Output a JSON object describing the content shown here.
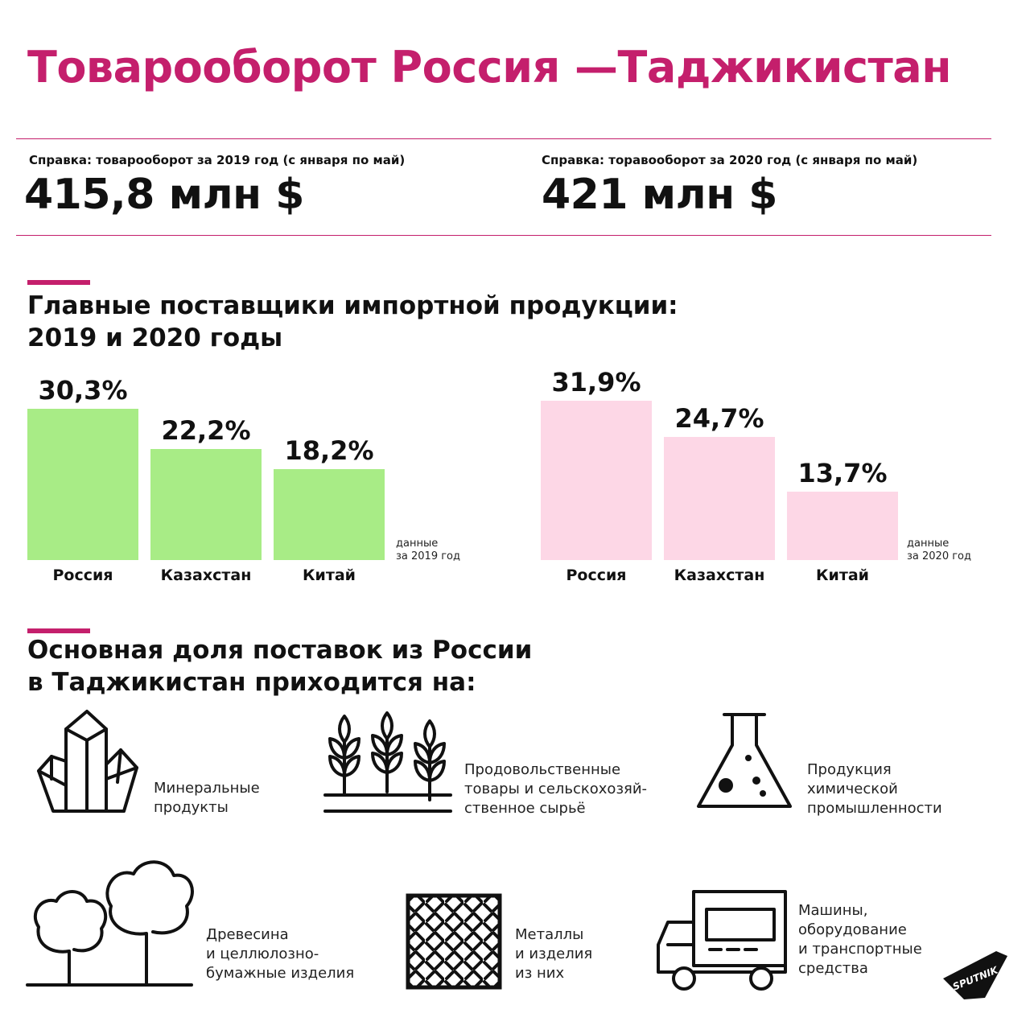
{
  "title": "Товарооборот Россия —Таджикистан",
  "stats": [
    {
      "label": "Справка: товарооборот за 2019 год (с января по май)",
      "value": "415,8 млн $"
    },
    {
      "label": "Справка: торавооборот за 2020 год (с января по май)",
      "value": "421 млн $"
    }
  ],
  "suppliers": {
    "heading": [
      "Главные поставщики импортной продукции:",
      "2019 и 2020 годы"
    ]
  },
  "chart_data": [
    {
      "type": "bar",
      "categories": [
        "Россия",
        "Казахстан",
        "Китай"
      ],
      "values": [
        30.3,
        22.2,
        18.2
      ],
      "value_labels": [
        "30,3%",
        "22,2%",
        "18,2%"
      ],
      "note": [
        "данные",
        "за 2019 год"
      ],
      "color": "#a8ec86",
      "unit": "%"
    },
    {
      "type": "bar",
      "categories": [
        "Россия",
        "Казахстан",
        "Китай"
      ],
      "values": [
        31.9,
        24.7,
        13.7
      ],
      "value_labels": [
        "31,9%",
        "24,7%",
        "13,7%"
      ],
      "note": [
        "данные",
        "за 2020 год"
      ],
      "color": "#fdd7e6",
      "unit": "%"
    }
  ],
  "exports": {
    "heading": [
      "Основная доля поставок из России",
      "в Таджикистан приходится на:"
    ],
    "items": [
      {
        "icon": "crystals-icon",
        "lines": [
          "Минеральные",
          "продукты"
        ]
      },
      {
        "icon": "wheat-icon",
        "lines": [
          "Продовольственные",
          "товары и сельскохозяй-",
          "ственное сырьё"
        ]
      },
      {
        "icon": "flask-icon",
        "lines": [
          "Продукция",
          "химической",
          "промышленности"
        ]
      },
      {
        "icon": "trees-icon",
        "lines": [
          "Древесина",
          "и целлюлозно-",
          "бумажные изделия"
        ]
      },
      {
        "icon": "metal-plate-icon",
        "lines": [
          "Металлы",
          "и изделия",
          "из них"
        ]
      },
      {
        "icon": "truck-icon",
        "lines": [
          "Машины,",
          "оборудование",
          "и транспортные",
          "средства"
        ]
      }
    ]
  },
  "logo": {
    "text": "SPUTNIK",
    "color": "#111111"
  },
  "colors": {
    "accent": "#c41f6c",
    "bars_2019": "#a8ec86",
    "bars_2020": "#fdd7e6"
  }
}
